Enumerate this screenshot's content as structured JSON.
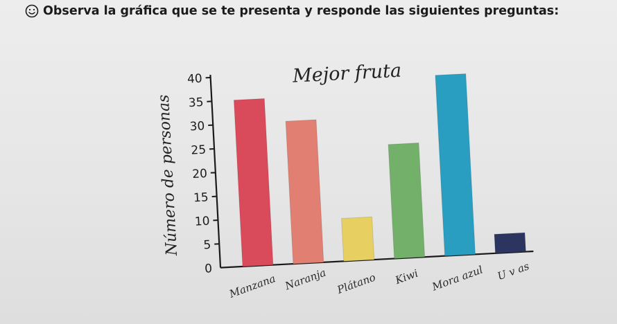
{
  "instruction": {
    "text": "Observa la gráfica que se te presenta y responde las siguientes preguntas:",
    "icon": "smiley-icon"
  },
  "chart_data": {
    "type": "bar",
    "title": "Mejor fruta",
    "xlabel": "",
    "ylabel": "Número de personas",
    "ylim": [
      0,
      40
    ],
    "yticks": [
      0,
      5,
      10,
      15,
      20,
      25,
      30,
      35,
      40
    ],
    "grid": false,
    "categories": [
      "Manzana",
      "Naranja",
      "Plátano",
      "Kiwi",
      "Mora azul",
      "U v as"
    ],
    "values": [
      35,
      30,
      9,
      24,
      38,
      4
    ],
    "colors": [
      "#d94a5a",
      "#e07f72",
      "#e7cf62",
      "#73b06a",
      "#2a9ec0",
      "#2b3560"
    ]
  }
}
